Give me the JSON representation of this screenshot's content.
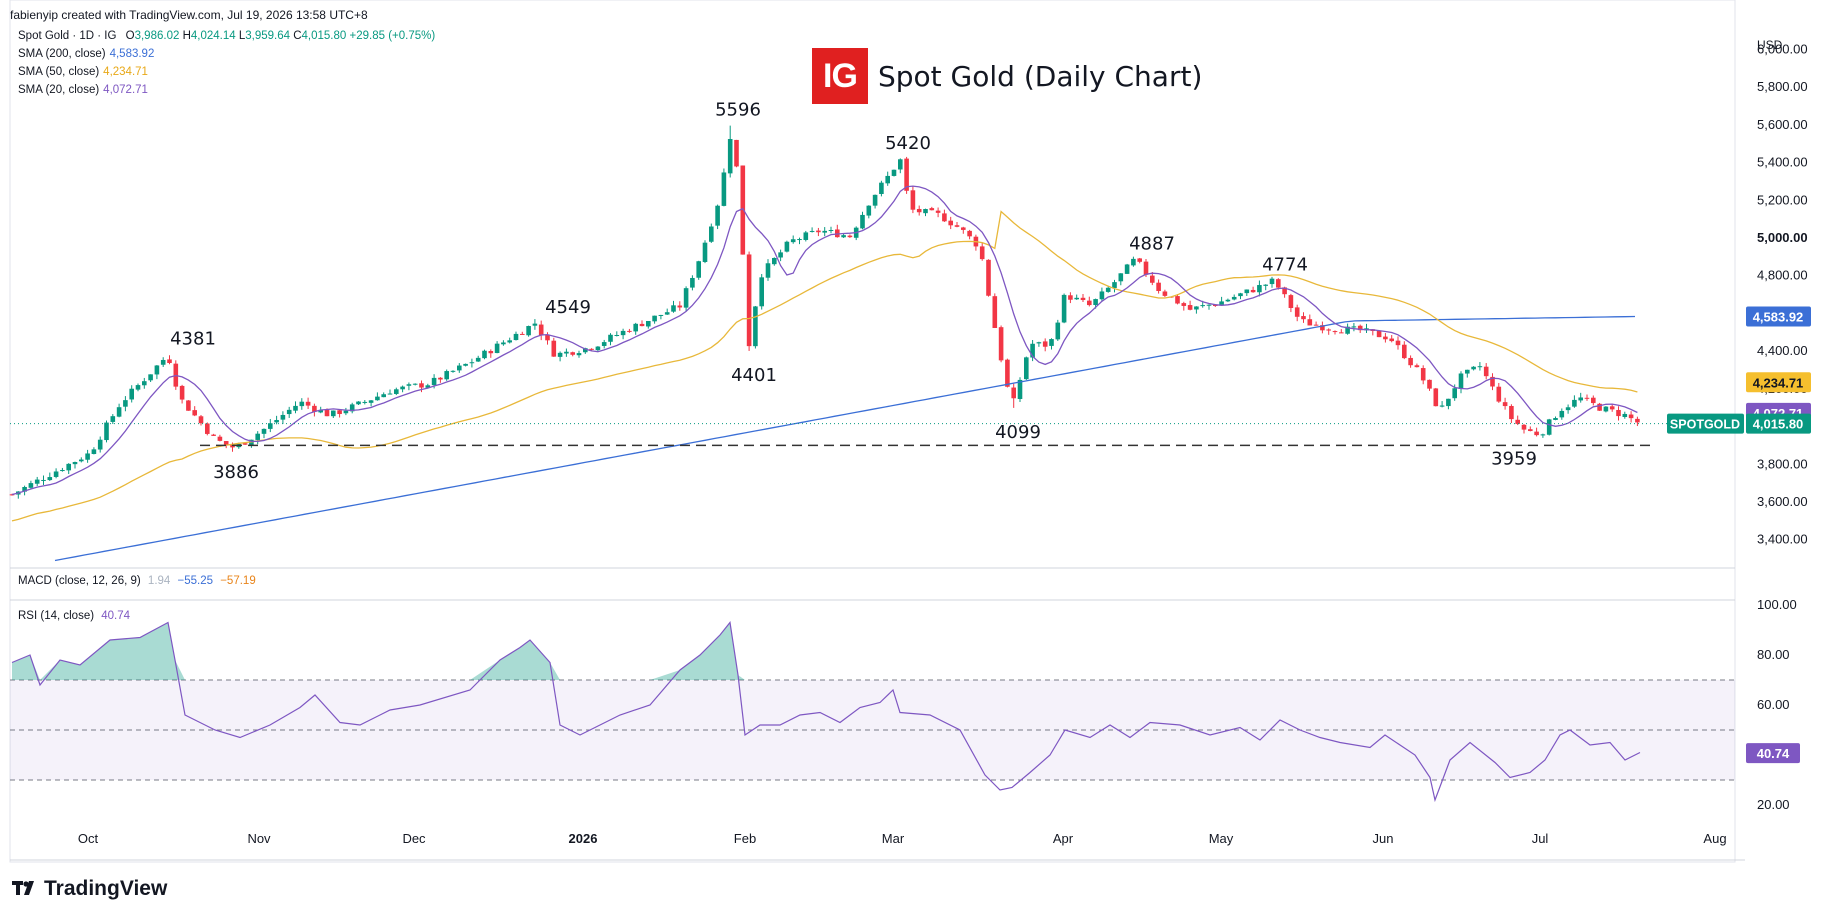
{
  "header": {
    "attribution": "fabienyip created with TradingView.com, Jul 19, 2026 13:58 UTC+8",
    "symbol_line": "Spot Gold · 1D · IG",
    "ohlc": {
      "o_label": "O",
      "o": "3,986.02",
      "h_label": "H",
      "h": "4,024.14",
      "l_label": "L",
      "l": "3,959.64",
      "c_label": "C",
      "c": "4,015.80",
      "chg": "+29.85 (+0.75%)"
    }
  },
  "indicators": [
    {
      "label": "SMA (200, close)",
      "value": "4,583.92",
      "color": "#3b6fd6"
    },
    {
      "label": "SMA (50, close)",
      "value": "4,234.71",
      "color": "#e8b83a"
    },
    {
      "label": "SMA (20, close)",
      "value": "4,072.71",
      "color": "#7e57c2"
    }
  ],
  "title": {
    "logo": "IG",
    "text": "Spot Gold (Daily Chart)"
  },
  "currency": "USD",
  "chart_data": {
    "type": "candlestick",
    "ylim": [
      3250,
      6050
    ],
    "price_ticks": [
      "3,400.00",
      "3,600.00",
      "3,800.00",
      "4,000.00",
      "4,200.00",
      "4,400.00",
      "4,600.00",
      "4,800.00",
      "5,000.00",
      "5,200.00",
      "5,400.00",
      "5,600.00",
      "5,800.00",
      "6,000.00"
    ],
    "x_ticks": [
      "Oct",
      "Nov",
      "Dec",
      "2026",
      "Feb",
      "Mar",
      "Apr",
      "May",
      "Jun",
      "Jul",
      "Aug"
    ],
    "annotations": [
      {
        "text": "4381",
        "price": 4381,
        "pos": "above"
      },
      {
        "text": "3886",
        "price": 3886,
        "pos": "below"
      },
      {
        "text": "4549",
        "price": 4549,
        "pos": "above"
      },
      {
        "text": "5596",
        "price": 5596,
        "pos": "above"
      },
      {
        "text": "4401",
        "price": 4401,
        "pos": "below"
      },
      {
        "text": "5420",
        "price": 5420,
        "pos": "above"
      },
      {
        "text": "4099",
        "price": 4099,
        "pos": "below"
      },
      {
        "text": "4887",
        "price": 4887,
        "pos": "above"
      },
      {
        "text": "4774",
        "price": 4774,
        "pos": "above"
      },
      {
        "text": "3959",
        "price": 3959,
        "pos": "below"
      }
    ],
    "support_level": 3900,
    "price_labels": [
      {
        "text": "4,583.92",
        "value": 4583.92,
        "bg": "#3b6fd6",
        "fg": "#ffffff"
      },
      {
        "text": "4,234.71",
        "value": 4234.71,
        "bg": "#f5bf2e",
        "fg": "#131722"
      },
      {
        "text": "4,072.71",
        "value": 4072.71,
        "bg": "#7e57c2",
        "fg": "#ffffff"
      },
      {
        "text": "4,015.80",
        "value": 4015.8,
        "bg": "#089981",
        "fg": "#ffffff",
        "tag": "SPOTGOLD"
      }
    ],
    "last_price": 4015.8
  },
  "macd": {
    "label": "MACD (close, 12, 26, 9)",
    "v1": "1.94",
    "v2": "−55.25",
    "v3": "−57.19"
  },
  "rsi": {
    "label": "RSI (14, close)",
    "value": "40.74",
    "ticks": [
      "20.00",
      "40.00",
      "60.00",
      "80.00",
      "100.00"
    ],
    "ylim": [
      10,
      100
    ],
    "upper": 70,
    "lower": 30,
    "mid": 50
  },
  "brand": "TradingView"
}
